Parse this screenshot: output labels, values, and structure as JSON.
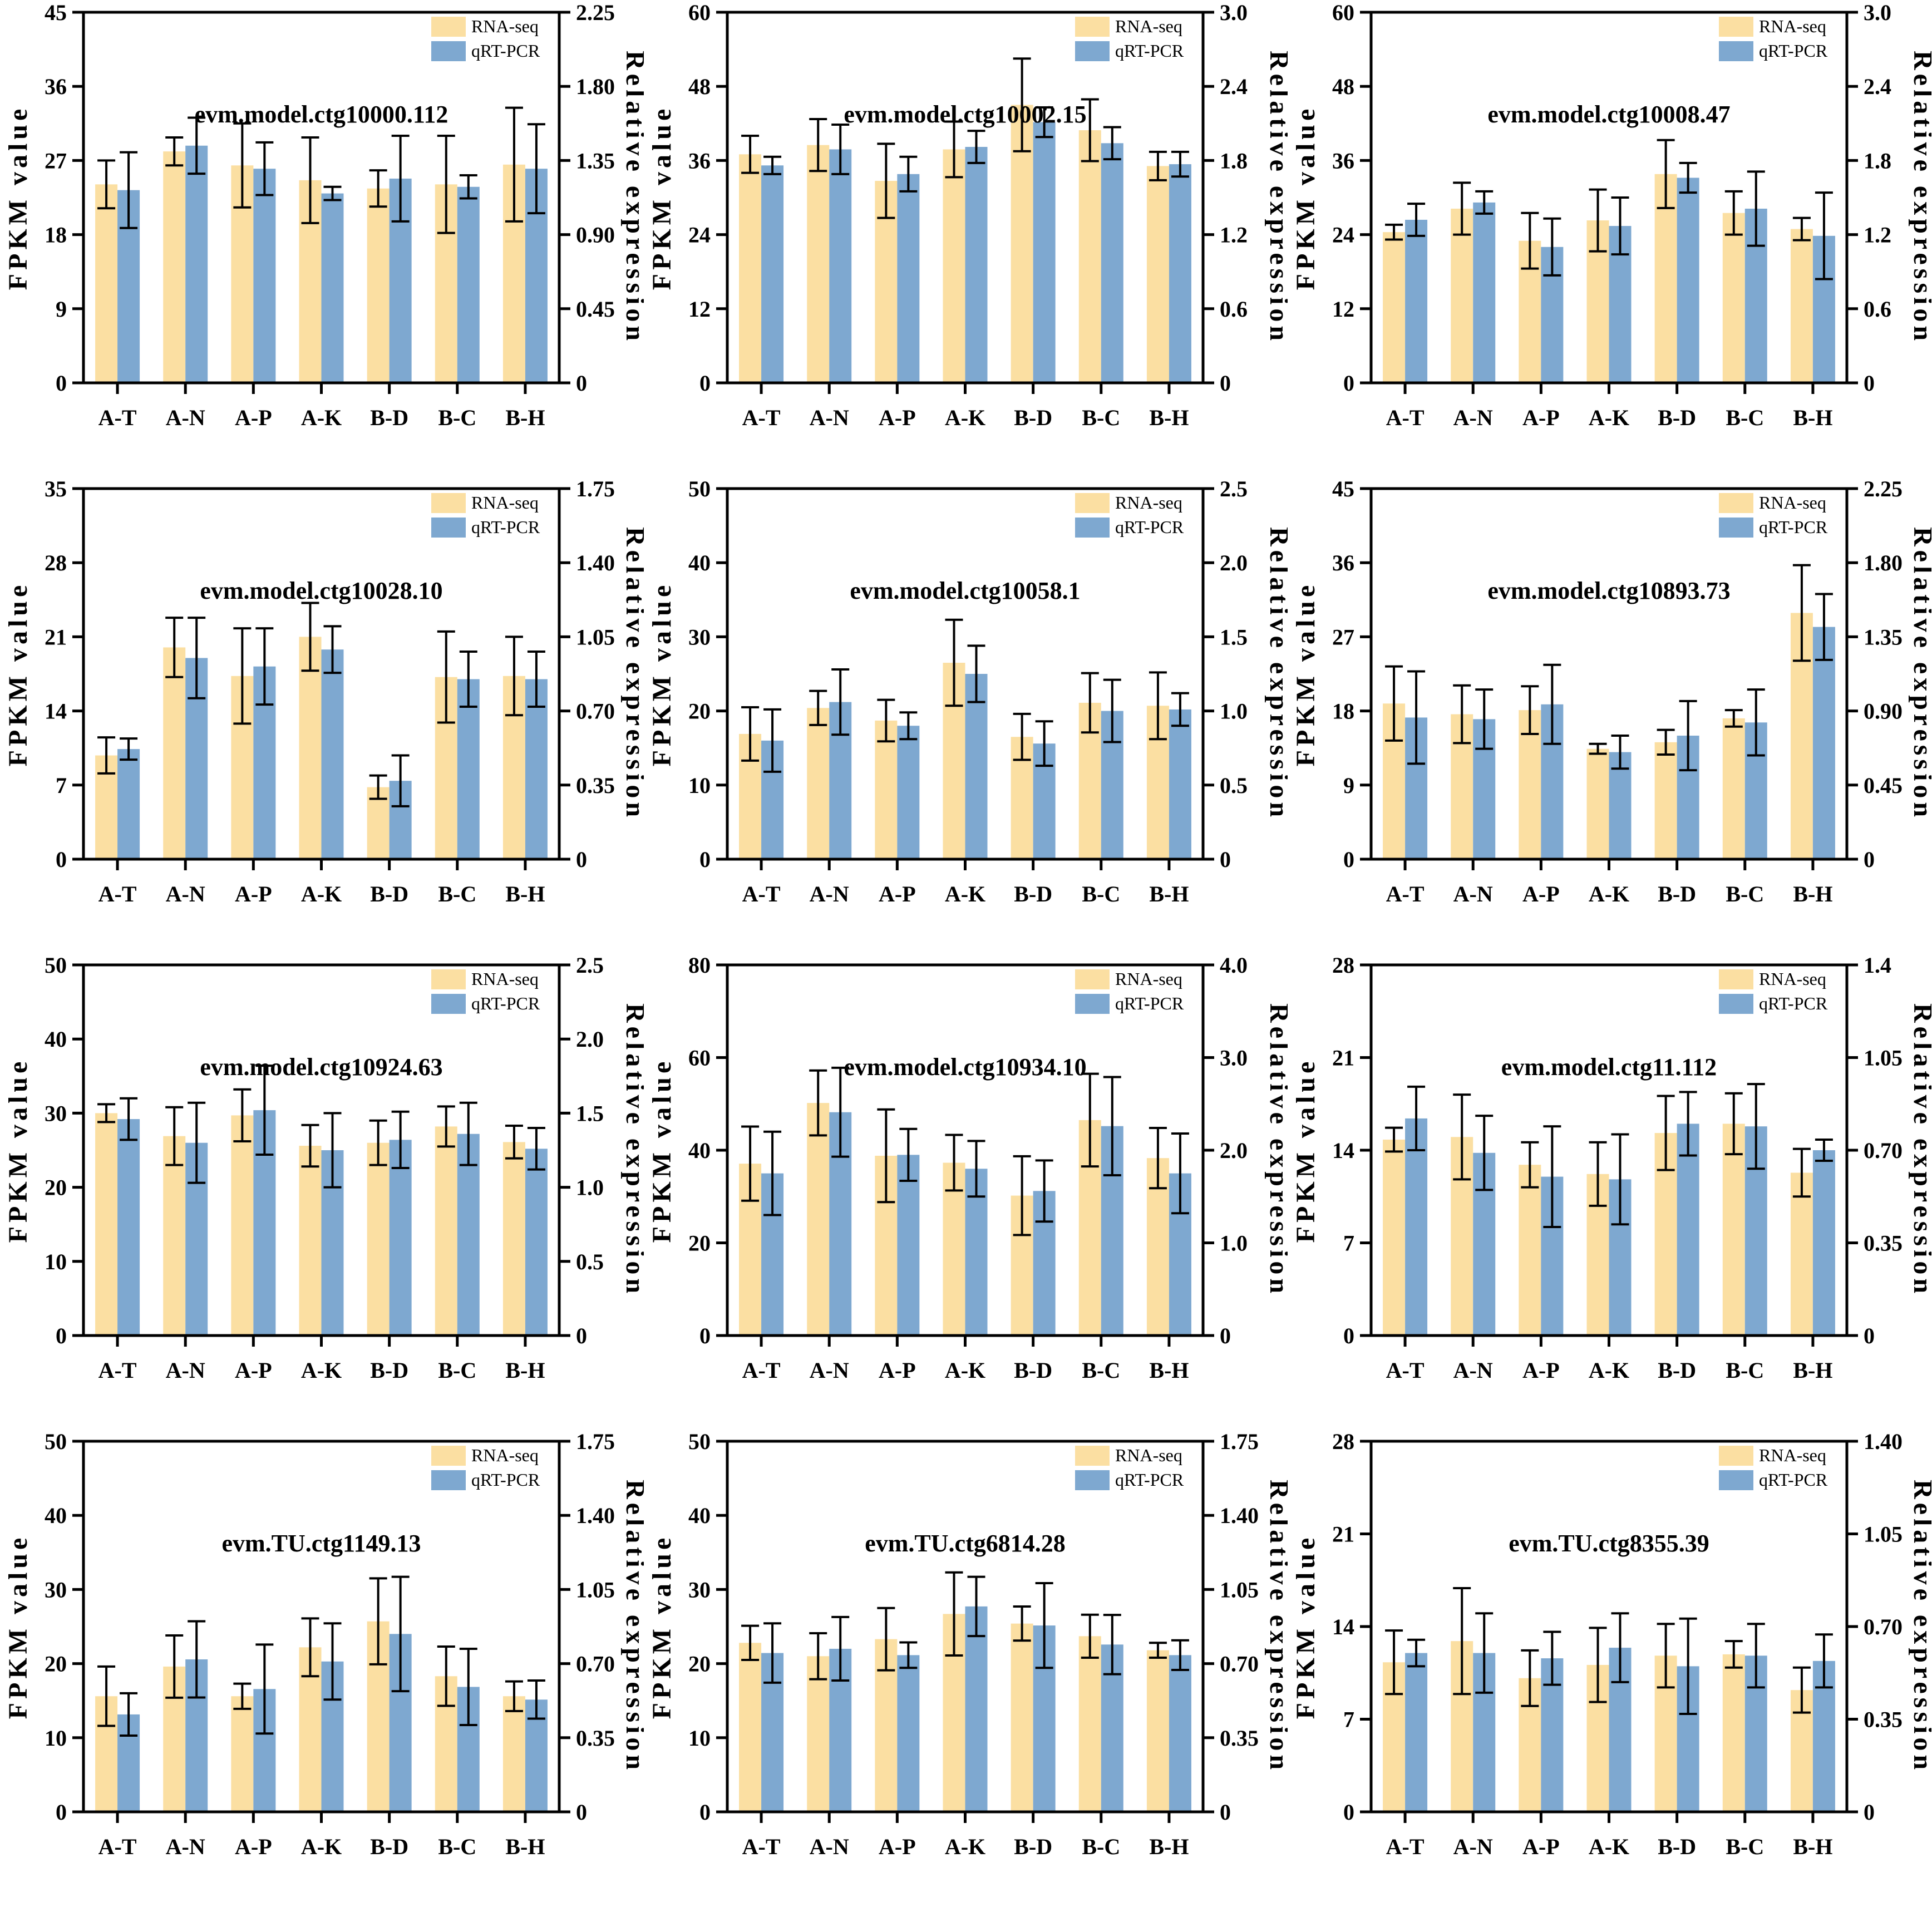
{
  "page": {
    "left_axis_label": "FPKM value",
    "right_axis_label": "Relative expression",
    "legend": {
      "rna_label": "RNA-seq",
      "qpcr_label": "qRT-PCR"
    },
    "colors": {
      "rna_seq": "#FBDFA2",
      "qrt_pcr": "#7EA8D0",
      "axis": "#000000",
      "background": "#FFFFFF"
    }
  },
  "chart_data": [
    {
      "type": "bar",
      "title": "evm.model.ctg10000.112",
      "categories": [
        "A-T",
        "A-N",
        "A-P",
        "A-K",
        "B-D",
        "B-C",
        "B-H"
      ],
      "left_axis": {
        "label": "FPKM value",
        "max": 45,
        "ticks": [
          "0",
          "9",
          "18",
          "27",
          "36",
          "45"
        ]
      },
      "right_axis": {
        "label": "Relative expression",
        "max": 2.25,
        "ticks": [
          "0",
          "0.45",
          "0.90",
          "1.35",
          "1.80",
          "2.25"
        ]
      },
      "series": [
        {
          "name": "RNA-seq",
          "axis": "left",
          "values": [
            24.1,
            28.1,
            26.4,
            24.6,
            23.6,
            24.1,
            26.5
          ],
          "errors": [
            2.9,
            1.7,
            5.1,
            5.2,
            2.2,
            5.9,
            6.9
          ]
        },
        {
          "name": "qRT-PCR",
          "axis": "right",
          "values": [
            1.17,
            1.44,
            1.3,
            1.15,
            1.24,
            1.19,
            1.3
          ],
          "errors": [
            0.23,
            0.17,
            0.16,
            0.04,
            0.26,
            0.07,
            0.27
          ]
        }
      ]
    },
    {
      "type": "bar",
      "title": "evm.model.ctg10002.15",
      "categories": [
        "A-T",
        "A-N",
        "A-P",
        "A-K",
        "B-D",
        "B-C",
        "B-H"
      ],
      "left_axis": {
        "label": "FPKM value",
        "max": 60,
        "ticks": [
          "0",
          "12",
          "24",
          "36",
          "48",
          "60"
        ]
      },
      "right_axis": {
        "label": "Relative expression",
        "max": 3.0,
        "ticks": [
          "0",
          "0.6",
          "1.2",
          "1.8",
          "2.4",
          "3.0"
        ]
      },
      "series": [
        {
          "name": "RNA-seq",
          "axis": "left",
          "values": [
            37.0,
            38.5,
            32.7,
            37.8,
            45.0,
            40.9,
            35.1
          ],
          "errors": [
            3.0,
            4.2,
            6.0,
            4.5,
            7.5,
            5.0,
            2.3
          ]
        },
        {
          "name": "qRT-PCR",
          "axis": "right",
          "values": [
            1.76,
            1.89,
            1.69,
            1.91,
            2.11,
            1.94,
            1.77
          ],
          "errors": [
            0.07,
            0.2,
            0.14,
            0.13,
            0.12,
            0.13,
            0.1
          ]
        }
      ]
    },
    {
      "type": "bar",
      "title": "evm.model.ctg10008.47",
      "categories": [
        "A-T",
        "A-N",
        "A-P",
        "A-K",
        "B-D",
        "B-C",
        "B-H"
      ],
      "left_axis": {
        "label": "FPKM value",
        "max": 60,
        "ticks": [
          "0",
          "12",
          "24",
          "36",
          "48",
          "60"
        ]
      },
      "right_axis": {
        "label": "Relative expression",
        "max": 3.0,
        "ticks": [
          "0",
          "0.6",
          "1.2",
          "1.8",
          "2.4",
          "3.0"
        ]
      },
      "series": [
        {
          "name": "RNA-seq",
          "axis": "left",
          "values": [
            24.4,
            28.2,
            23.0,
            26.3,
            33.8,
            27.5,
            24.9
          ],
          "errors": [
            1.2,
            4.2,
            4.5,
            5.0,
            5.5,
            3.5,
            1.8
          ]
        },
        {
          "name": "qRT-PCR",
          "axis": "right",
          "values": [
            1.32,
            1.46,
            1.1,
            1.27,
            1.66,
            1.41,
            1.19
          ],
          "errors": [
            0.13,
            0.09,
            0.23,
            0.23,
            0.12,
            0.3,
            0.35
          ]
        }
      ]
    },
    {
      "type": "bar",
      "title": "evm.model.ctg10028.10",
      "categories": [
        "A-T",
        "A-N",
        "A-P",
        "A-K",
        "B-D",
        "B-C",
        "B-H"
      ],
      "left_axis": {
        "label": "FPKM value",
        "max": 35,
        "ticks": [
          "0",
          "7",
          "14",
          "21",
          "28",
          "35"
        ]
      },
      "right_axis": {
        "label": "Relative expression",
        "max": 1.75,
        "ticks": [
          "0",
          "0.35",
          "0.70",
          "1.05",
          "1.40",
          "1.75"
        ]
      },
      "series": [
        {
          "name": "RNA-seq",
          "axis": "left",
          "values": [
            9.8,
            20.0,
            17.3,
            21.0,
            6.8,
            17.2,
            17.3
          ],
          "errors": [
            1.7,
            2.8,
            4.5,
            3.2,
            1.1,
            4.3,
            3.7
          ]
        },
        {
          "name": "qRT-PCR",
          "axis": "right",
          "values": [
            0.52,
            0.95,
            0.91,
            0.99,
            0.37,
            0.85,
            0.85
          ],
          "errors": [
            0.05,
            0.19,
            0.18,
            0.11,
            0.12,
            0.13,
            0.13
          ]
        }
      ]
    },
    {
      "type": "bar",
      "title": "evm.model.ctg10058.1",
      "categories": [
        "A-T",
        "A-N",
        "A-P",
        "A-K",
        "B-D",
        "B-C",
        "B-H"
      ],
      "left_axis": {
        "label": "FPKM value",
        "max": 50,
        "ticks": [
          "0",
          "10",
          "20",
          "30",
          "40",
          "50"
        ]
      },
      "right_axis": {
        "label": "Relative expression",
        "max": 2.5,
        "ticks": [
          "0",
          "0.5",
          "1.0",
          "1.5",
          "2.0",
          "2.5"
        ]
      },
      "series": [
        {
          "name": "RNA-seq",
          "axis": "left",
          "values": [
            16.9,
            20.4,
            18.7,
            26.5,
            16.5,
            21.1,
            20.7
          ],
          "errors": [
            3.6,
            2.3,
            2.8,
            5.8,
            3.1,
            4.0,
            4.5
          ]
        },
        {
          "name": "qRT-PCR",
          "axis": "right",
          "values": [
            0.8,
            1.06,
            0.9,
            1.25,
            0.78,
            1.0,
            1.01
          ],
          "errors": [
            0.21,
            0.22,
            0.09,
            0.19,
            0.15,
            0.21,
            0.11
          ]
        }
      ]
    },
    {
      "type": "bar",
      "title": "evm.model.ctg10893.73",
      "categories": [
        "A-T",
        "A-N",
        "A-P",
        "A-K",
        "B-D",
        "B-C",
        "B-H"
      ],
      "left_axis": {
        "label": "FPKM value",
        "max": 45,
        "ticks": [
          "0",
          "9",
          "18",
          "27",
          "36",
          "45"
        ]
      },
      "right_axis": {
        "label": "Relative expression",
        "max": 2.25,
        "ticks": [
          "0",
          "0.45",
          "0.90",
          "1.35",
          "1.80",
          "2.25"
        ]
      },
      "series": [
        {
          "name": "RNA-seq",
          "axis": "left",
          "values": [
            18.9,
            17.6,
            18.1,
            13.4,
            14.2,
            17.1,
            29.9
          ],
          "errors": [
            4.5,
            3.5,
            2.9,
            0.6,
            1.5,
            1.0,
            5.8
          ]
        },
        {
          "name": "qRT-PCR",
          "axis": "right",
          "values": [
            0.86,
            0.85,
            0.94,
            0.65,
            0.75,
            0.83,
            1.41
          ],
          "errors": [
            0.28,
            0.18,
            0.24,
            0.1,
            0.21,
            0.2,
            0.2
          ]
        }
      ]
    },
    {
      "type": "bar",
      "title": "evm.model.ctg10924.63",
      "categories": [
        "A-T",
        "A-N",
        "A-P",
        "A-K",
        "B-D",
        "B-C",
        "B-H"
      ],
      "left_axis": {
        "label": "FPKM value",
        "max": 50,
        "ticks": [
          "0",
          "10",
          "20",
          "30",
          "40",
          "50"
        ]
      },
      "right_axis": {
        "label": "Relative expression",
        "max": 2.5,
        "ticks": [
          "0",
          "0.5",
          "1.0",
          "1.5",
          "2.0",
          "2.5"
        ]
      },
      "series": [
        {
          "name": "RNA-seq",
          "axis": "left",
          "values": [
            30.0,
            26.9,
            29.7,
            25.6,
            26.0,
            28.2,
            26.1
          ],
          "errors": [
            1.2,
            3.9,
            3.5,
            2.8,
            3.0,
            2.7,
            2.2
          ]
        },
        {
          "name": "qRT-PCR",
          "axis": "right",
          "values": [
            1.46,
            1.3,
            1.52,
            1.25,
            1.32,
            1.36,
            1.26
          ],
          "errors": [
            0.14,
            0.27,
            0.3,
            0.25,
            0.19,
            0.21,
            0.14
          ]
        }
      ]
    },
    {
      "type": "bar",
      "title": "evm.model.ctg10934.10",
      "categories": [
        "A-T",
        "A-N",
        "A-P",
        "A-K",
        "B-D",
        "B-C",
        "B-H"
      ],
      "left_axis": {
        "label": "FPKM value",
        "max": 80,
        "ticks": [
          "0",
          "20",
          "40",
          "60",
          "80"
        ]
      },
      "right_axis": {
        "label": "Relative expression",
        "max": 4.0,
        "ticks": [
          "0",
          "1.0",
          "2.0",
          "3.0",
          "4.0"
        ]
      },
      "series": [
        {
          "name": "RNA-seq",
          "axis": "left",
          "values": [
            37.1,
            50.2,
            38.8,
            37.3,
            30.2,
            46.5,
            38.3
          ],
          "errors": [
            8.0,
            7.0,
            10.0,
            6.0,
            8.5,
            10.0,
            6.5
          ]
        },
        {
          "name": "qRT-PCR",
          "axis": "right",
          "values": [
            1.75,
            2.41,
            1.95,
            1.8,
            1.56,
            2.26,
            1.75
          ],
          "errors": [
            0.45,
            0.48,
            0.28,
            0.3,
            0.33,
            0.53,
            0.43
          ]
        }
      ]
    },
    {
      "type": "bar",
      "title": "evm.model.ctg11.112",
      "categories": [
        "A-T",
        "A-N",
        "A-P",
        "A-K",
        "B-D",
        "B-C",
        "B-H"
      ],
      "left_axis": {
        "label": "FPKM value",
        "max": 28,
        "ticks": [
          "0",
          "7",
          "14",
          "21",
          "28"
        ]
      },
      "right_axis": {
        "label": "Relative expression",
        "max": 1.4,
        "ticks": [
          "0",
          "0.35",
          "0.70",
          "1.05",
          "1.4"
        ]
      },
      "series": [
        {
          "name": "RNA-seq",
          "axis": "left",
          "values": [
            14.8,
            15.0,
            12.9,
            12.2,
            15.3,
            16.0,
            12.3
          ],
          "errors": [
            0.9,
            3.2,
            1.7,
            2.4,
            2.8,
            2.3,
            1.8
          ]
        },
        {
          "name": "qRT-PCR",
          "axis": "right",
          "values": [
            0.82,
            0.69,
            0.6,
            0.59,
            0.8,
            0.79,
            0.7
          ],
          "errors": [
            0.12,
            0.14,
            0.19,
            0.17,
            0.12,
            0.16,
            0.04
          ]
        }
      ]
    },
    {
      "type": "bar",
      "title": "evm.TU.ctg1149.13",
      "categories": [
        "A-T",
        "A-N",
        "A-P",
        "A-K",
        "B-D",
        "B-C",
        "B-H"
      ],
      "left_axis": {
        "label": "FPKM value",
        "max": 50,
        "ticks": [
          "0",
          "10",
          "20",
          "30",
          "40",
          "50"
        ]
      },
      "right_axis": {
        "label": "Relative expression",
        "max": 1.75,
        "ticks": [
          "0",
          "0.35",
          "0.70",
          "1.05",
          "1.40",
          "1.75"
        ]
      },
      "series": [
        {
          "name": "RNA-seq",
          "axis": "left",
          "values": [
            15.6,
            19.6,
            15.6,
            22.2,
            25.7,
            18.3,
            15.6
          ],
          "errors": [
            4.0,
            4.2,
            1.7,
            3.9,
            5.8,
            4.0,
            2.0
          ]
        },
        {
          "name": "qRT-PCR",
          "axis": "right",
          "values": [
            0.46,
            0.72,
            0.58,
            0.71,
            0.84,
            0.59,
            0.53
          ],
          "errors": [
            0.1,
            0.18,
            0.21,
            0.18,
            0.27,
            0.18,
            0.09
          ]
        }
      ]
    },
    {
      "type": "bar",
      "title": "evm.TU.ctg6814.28",
      "categories": [
        "A-T",
        "A-N",
        "A-P",
        "A-K",
        "B-D",
        "B-C",
        "B-H"
      ],
      "left_axis": {
        "label": "FPKM value",
        "max": 50,
        "ticks": [
          "0",
          "10",
          "20",
          "30",
          "40",
          "50"
        ]
      },
      "right_axis": {
        "label": "Relative expression",
        "max": 1.75,
        "ticks": [
          "0",
          "0.35",
          "0.70",
          "1.05",
          "1.40",
          "1.75"
        ]
      },
      "series": [
        {
          "name": "RNA-seq",
          "axis": "left",
          "values": [
            22.8,
            21.0,
            23.3,
            26.7,
            25.4,
            23.7,
            21.8
          ],
          "errors": [
            2.3,
            3.1,
            4.2,
            5.6,
            2.3,
            2.9,
            1.0
          ]
        },
        {
          "name": "qRT-PCR",
          "axis": "right",
          "values": [
            0.75,
            0.77,
            0.74,
            0.97,
            0.88,
            0.79,
            0.74
          ],
          "errors": [
            0.14,
            0.15,
            0.06,
            0.14,
            0.2,
            0.14,
            0.07
          ]
        }
      ]
    },
    {
      "type": "bar",
      "title": "evm.TU.ctg8355.39",
      "categories": [
        "A-T",
        "A-N",
        "A-P",
        "A-K",
        "B-D",
        "B-C",
        "B-H"
      ],
      "left_axis": {
        "label": "FPKM value",
        "max": 28,
        "ticks": [
          "0",
          "7",
          "14",
          "21",
          "28"
        ]
      },
      "right_axis": {
        "label": "Relative expression",
        "max": 1.4,
        "ticks": [
          "0",
          "0.35",
          "0.70",
          "1.05",
          "1.40"
        ]
      },
      "series": [
        {
          "name": "RNA-seq",
          "axis": "left",
          "values": [
            11.3,
            12.9,
            10.1,
            11.1,
            11.8,
            11.9,
            9.2
          ],
          "errors": [
            2.4,
            4.0,
            2.1,
            2.8,
            2.4,
            1.0,
            1.7
          ]
        },
        {
          "name": "qRT-PCR",
          "axis": "right",
          "values": [
            0.6,
            0.6,
            0.58,
            0.62,
            0.55,
            0.59,
            0.57
          ],
          "errors": [
            0.05,
            0.15,
            0.1,
            0.13,
            0.18,
            0.12,
            0.1
          ]
        }
      ]
    }
  ]
}
